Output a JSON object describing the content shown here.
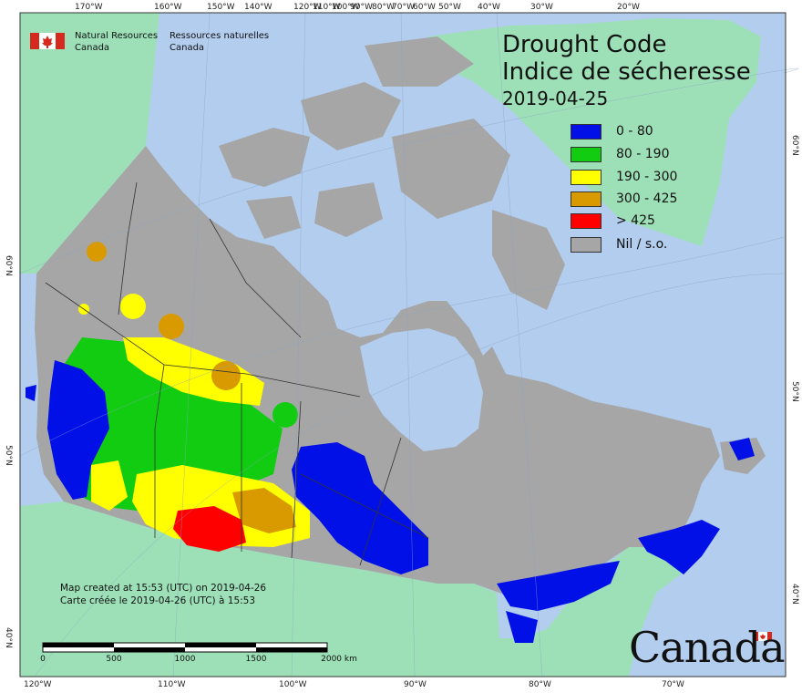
{
  "title": {
    "en": "Drought Code",
    "fr": "Indice de sécheresse",
    "date": "2019-04-25"
  },
  "legend": [
    {
      "label": "0 - 80",
      "color": "#0010e6"
    },
    {
      "label": "80 - 190",
      "color": "#11cc11"
    },
    {
      "label": "190 - 300",
      "color": "#ffff00"
    },
    {
      "label": "300 - 425",
      "color": "#d99a00"
    },
    {
      "label": "> 425",
      "color": "#ff0000"
    },
    {
      "label": "Nil / s.o.",
      "color": "#a6a6a6"
    }
  ],
  "agency": {
    "en_line1": "Natural Resources",
    "en_line2": "Canada",
    "fr_line1": "Ressources naturelles",
    "fr_line2": "Canada"
  },
  "credit": {
    "en": "Map created at 15:53 (UTC) on 2019-04-26",
    "fr": "Carte créée le 2019-04-26 (UTC) à 15:53"
  },
  "scale_bar": {
    "ticks": [
      "0",
      "500",
      "1000",
      "1500",
      "2000 km"
    ]
  },
  "graticule": {
    "top": [
      "170°W",
      "160°W",
      "150°W",
      "140°W",
      "120°W",
      "110°W",
      "100°W",
      "90°W",
      "80°W",
      "70°W",
      "60°W",
      "50°W",
      "40°W",
      "30°W",
      "20°W"
    ],
    "bottom": [
      "120°W",
      "110°W",
      "100°W",
      "90°W",
      "80°W",
      "70°W"
    ],
    "left": [
      "60°N",
      "50°N",
      "40°N"
    ],
    "right": [
      "60°N",
      "50°N",
      "40°N"
    ]
  },
  "wordmark": "Canada",
  "colors": {
    "ocean": "#b3cdee",
    "foreign_land": "#9de0b8",
    "canada_nil": "#a6a6a6",
    "boundary": "#333333"
  }
}
